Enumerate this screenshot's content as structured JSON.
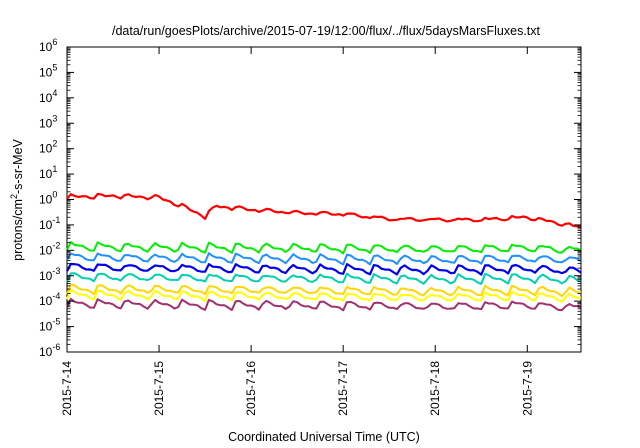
{
  "chart_data": {
    "type": "line",
    "title": "/data/run/goesPlots/archive/2015-07-19/12:00/flux/../flux/5daysMarsFluxes.txt",
    "xlabel": "Coordinated Universal Time (UTC)",
    "ylabel": {
      "base": "protons/cm",
      "sup": "2",
      "rest": "-s-sr-MeV"
    },
    "yscale": "log",
    "ylim": [
      -6,
      6
    ],
    "y_ticks": [
      {
        "base": "10",
        "exp": "6"
      },
      {
        "base": "10",
        "exp": "5"
      },
      {
        "base": "10",
        "exp": "4"
      },
      {
        "base": "10",
        "exp": "3"
      },
      {
        "base": "10",
        "exp": "2"
      },
      {
        "base": "10",
        "exp": "1"
      },
      {
        "base": "10",
        "exp": "0"
      },
      {
        "base": "10",
        "exp": "-1"
      },
      {
        "base": "10",
        "exp": "-2"
      },
      {
        "base": "10",
        "exp": "-3"
      },
      {
        "base": "10",
        "exp": "-4"
      },
      {
        "base": "10",
        "exp": "-5"
      },
      {
        "base": "10",
        "exp": "-6"
      }
    ],
    "x_ticks": [
      "2015-7-14",
      "2015-7-15",
      "2015-7-16",
      "2015-7-17",
      "2015-7-18",
      "2015-7-19"
    ],
    "xlim": [
      "2015-07-14T00:00",
      "2015-07-19T14:00"
    ],
    "grid": false,
    "legend": "none",
    "series": [
      {
        "color": "#ff0000",
        "lw": 2.2,
        "noise": 0.035,
        "knots": [
          [
            "2015-07-14T00:00",
            1.25
          ],
          [
            "2015-07-14T12:00",
            1.4
          ],
          [
            "2015-07-15T00:00",
            1.2
          ],
          [
            "2015-07-15T06:00",
            0.55
          ],
          [
            "2015-07-15T12:00",
            0.22
          ],
          [
            "2015-07-15T15:00",
            0.55
          ],
          [
            "2015-07-16T00:00",
            0.4
          ],
          [
            "2015-07-16T12:00",
            0.3
          ],
          [
            "2015-07-17T00:00",
            0.27
          ],
          [
            "2015-07-17T12:00",
            0.17
          ],
          [
            "2015-07-18T00:00",
            0.16
          ],
          [
            "2015-07-18T12:00",
            0.16
          ],
          [
            "2015-07-19T00:00",
            0.2
          ],
          [
            "2015-07-19T14:00",
            0.08
          ]
        ]
      },
      {
        "color": "#00ee00",
        "lw": 2.0,
        "noise": 0.04,
        "knots": [
          [
            "2015-07-14T00:00",
            0.014
          ],
          [
            "2015-07-15T00:00",
            0.013
          ],
          [
            "2015-07-16T00:00",
            0.0125
          ],
          [
            "2015-07-17T00:00",
            0.012
          ],
          [
            "2015-07-18T00:00",
            0.011
          ],
          [
            "2015-07-19T00:00",
            0.0125
          ],
          [
            "2015-07-19T14:00",
            0.01
          ]
        ]
      },
      {
        "color": "#1e90ff",
        "lw": 2.0,
        "noise": 0.04,
        "knots": [
          [
            "2015-07-14T00:00",
            0.0055
          ],
          [
            "2015-07-15T00:00",
            0.005
          ],
          [
            "2015-07-16T00:00",
            0.0048
          ],
          [
            "2015-07-17T00:00",
            0.0045
          ],
          [
            "2015-07-18T00:00",
            0.0042
          ],
          [
            "2015-07-19T00:00",
            0.0048
          ],
          [
            "2015-07-19T14:00",
            0.004
          ]
        ]
      },
      {
        "color": "#0000ee",
        "lw": 2.2,
        "noise": 0.04,
        "knots": [
          [
            "2015-07-14T00:00",
            0.0022
          ],
          [
            "2015-07-15T00:00",
            0.002
          ],
          [
            "2015-07-16T00:00",
            0.0019
          ],
          [
            "2015-07-17T00:00",
            0.0018
          ],
          [
            "2015-07-18T00:00",
            0.0017
          ],
          [
            "2015-07-19T00:00",
            0.0019
          ],
          [
            "2015-07-19T14:00",
            0.0015
          ]
        ]
      },
      {
        "color": "#00d0b0",
        "lw": 2.0,
        "noise": 0.04,
        "knots": [
          [
            "2015-07-14T00:00",
            0.0009
          ],
          [
            "2015-07-15T00:00",
            0.00085
          ],
          [
            "2015-07-16T00:00",
            0.0008
          ],
          [
            "2015-07-17T00:00",
            0.00078
          ],
          [
            "2015-07-18T00:00",
            0.00072
          ],
          [
            "2015-07-19T00:00",
            0.0008
          ],
          [
            "2015-07-19T14:00",
            0.00065
          ]
        ]
      },
      {
        "color": "#ffd700",
        "lw": 2.0,
        "noise": 0.04,
        "knots": [
          [
            "2015-07-14T00:00",
            0.0003
          ],
          [
            "2015-07-15T00:00",
            0.00029
          ],
          [
            "2015-07-16T00:00",
            0.00028
          ],
          [
            "2015-07-17T00:00",
            0.00026
          ],
          [
            "2015-07-18T00:00",
            0.00024
          ],
          [
            "2015-07-19T00:00",
            0.00027
          ],
          [
            "2015-07-19T14:00",
            0.00022
          ]
        ]
      },
      {
        "color": "#ffff00",
        "lw": 2.0,
        "noise": 0.04,
        "knots": [
          [
            "2015-07-14T00:00",
            0.00018
          ],
          [
            "2015-07-15T00:00",
            0.00017
          ],
          [
            "2015-07-16T00:00",
            0.00016
          ],
          [
            "2015-07-17T00:00",
            0.00015
          ],
          [
            "2015-07-18T00:00",
            0.00014
          ],
          [
            "2015-07-19T00:00",
            0.00016
          ],
          [
            "2015-07-19T14:00",
            0.00013
          ]
        ]
      },
      {
        "color": "#a0306e",
        "lw": 2.0,
        "noise": 0.04,
        "knots": [
          [
            "2015-07-14T00:00",
            8e-05
          ],
          [
            "2015-07-15T00:00",
            7.5e-05
          ],
          [
            "2015-07-16T00:00",
            7e-05
          ],
          [
            "2015-07-17T00:00",
            6.8e-05
          ],
          [
            "2015-07-18T00:00",
            6.2e-05
          ],
          [
            "2015-07-19T00:00",
            7e-05
          ],
          [
            "2015-07-19T14:00",
            5.5e-05
          ]
        ]
      }
    ]
  }
}
